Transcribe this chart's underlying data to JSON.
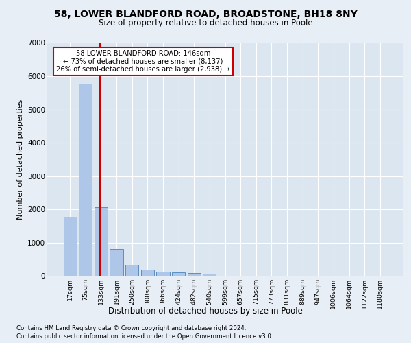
{
  "title_line1": "58, LOWER BLANDFORD ROAD, BROADSTONE, BH18 8NY",
  "title_line2": "Size of property relative to detached houses in Poole",
  "xlabel": "Distribution of detached houses by size in Poole",
  "ylabel": "Number of detached properties",
  "categories": [
    "17sqm",
    "75sqm",
    "133sqm",
    "191sqm",
    "250sqm",
    "308sqm",
    "366sqm",
    "424sqm",
    "482sqm",
    "540sqm",
    "599sqm",
    "657sqm",
    "715sqm",
    "773sqm",
    "831sqm",
    "889sqm",
    "947sqm",
    "1006sqm",
    "1064sqm",
    "1122sqm",
    "1180sqm"
  ],
  "values": [
    1780,
    5780,
    2060,
    820,
    340,
    195,
    130,
    105,
    90,
    70,
    0,
    0,
    0,
    0,
    0,
    0,
    0,
    0,
    0,
    0,
    0
  ],
  "bar_color": "#aec6e8",
  "bar_edge_color": "#5a8fc2",
  "vline_x_index": 2,
  "vline_color": "#cc0000",
  "annotation_title": "58 LOWER BLANDFORD ROAD: 146sqm",
  "annotation_line1": "← 73% of detached houses are smaller (8,137)",
  "annotation_line2": "26% of semi-detached houses are larger (2,938) →",
  "annotation_box_color": "#cc0000",
  "ylim": [
    0,
    7000
  ],
  "yticks": [
    0,
    1000,
    2000,
    3000,
    4000,
    5000,
    6000,
    7000
  ],
  "footnote1": "Contains HM Land Registry data © Crown copyright and database right 2024.",
  "footnote2": "Contains public sector information licensed under the Open Government Licence v3.0.",
  "background_color": "#e8eef5",
  "plot_bg_color": "#dce6f0"
}
